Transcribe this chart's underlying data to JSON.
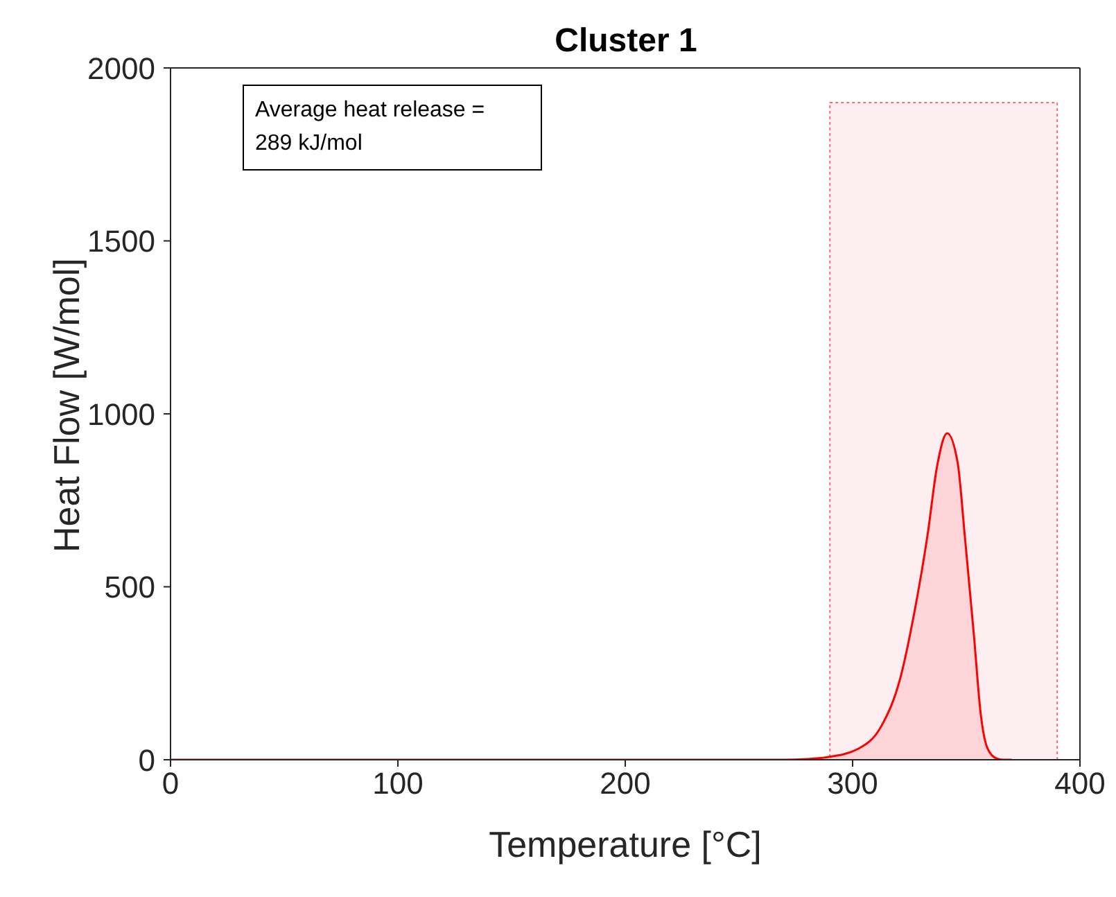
{
  "chart_data": {
    "type": "area",
    "title": "Cluster 1",
    "xlabel": "Temperature [°C]",
    "ylabel": "Heat Flow [W/mol]",
    "annotations": [
      "Average heat release =\n289 kJ/mol"
    ],
    "x": [
      0,
      100,
      200,
      250,
      270,
      280,
      288.4,
      302.6,
      312.7,
      320.9,
      326.9,
      333,
      337.1,
      341.6,
      346.2,
      349.3,
      353.3,
      356.4,
      359.4,
      363.5,
      366,
      370
    ],
    "series": [
      {
        "color": "#ff0000",
        "values": [
          0,
          0,
          0,
          0,
          0,
          2,
          7,
          32,
          98,
          234,
          417,
          651,
          846,
          944,
          859,
          651,
          365,
          130,
          32,
          3,
          0,
          0
        ]
      }
    ],
    "bands": [
      {
        "axis": "x",
        "from": 290,
        "to": 390,
        "color": "#fdeef2"
      }
    ],
    "xlim": [
      0,
      400
    ],
    "xticks": [
      0,
      100,
      200,
      300,
      400
    ],
    "ylim": [
      0,
      2000
    ],
    "yticks": [
      0,
      500,
      1000,
      1500,
      2000
    ]
  }
}
